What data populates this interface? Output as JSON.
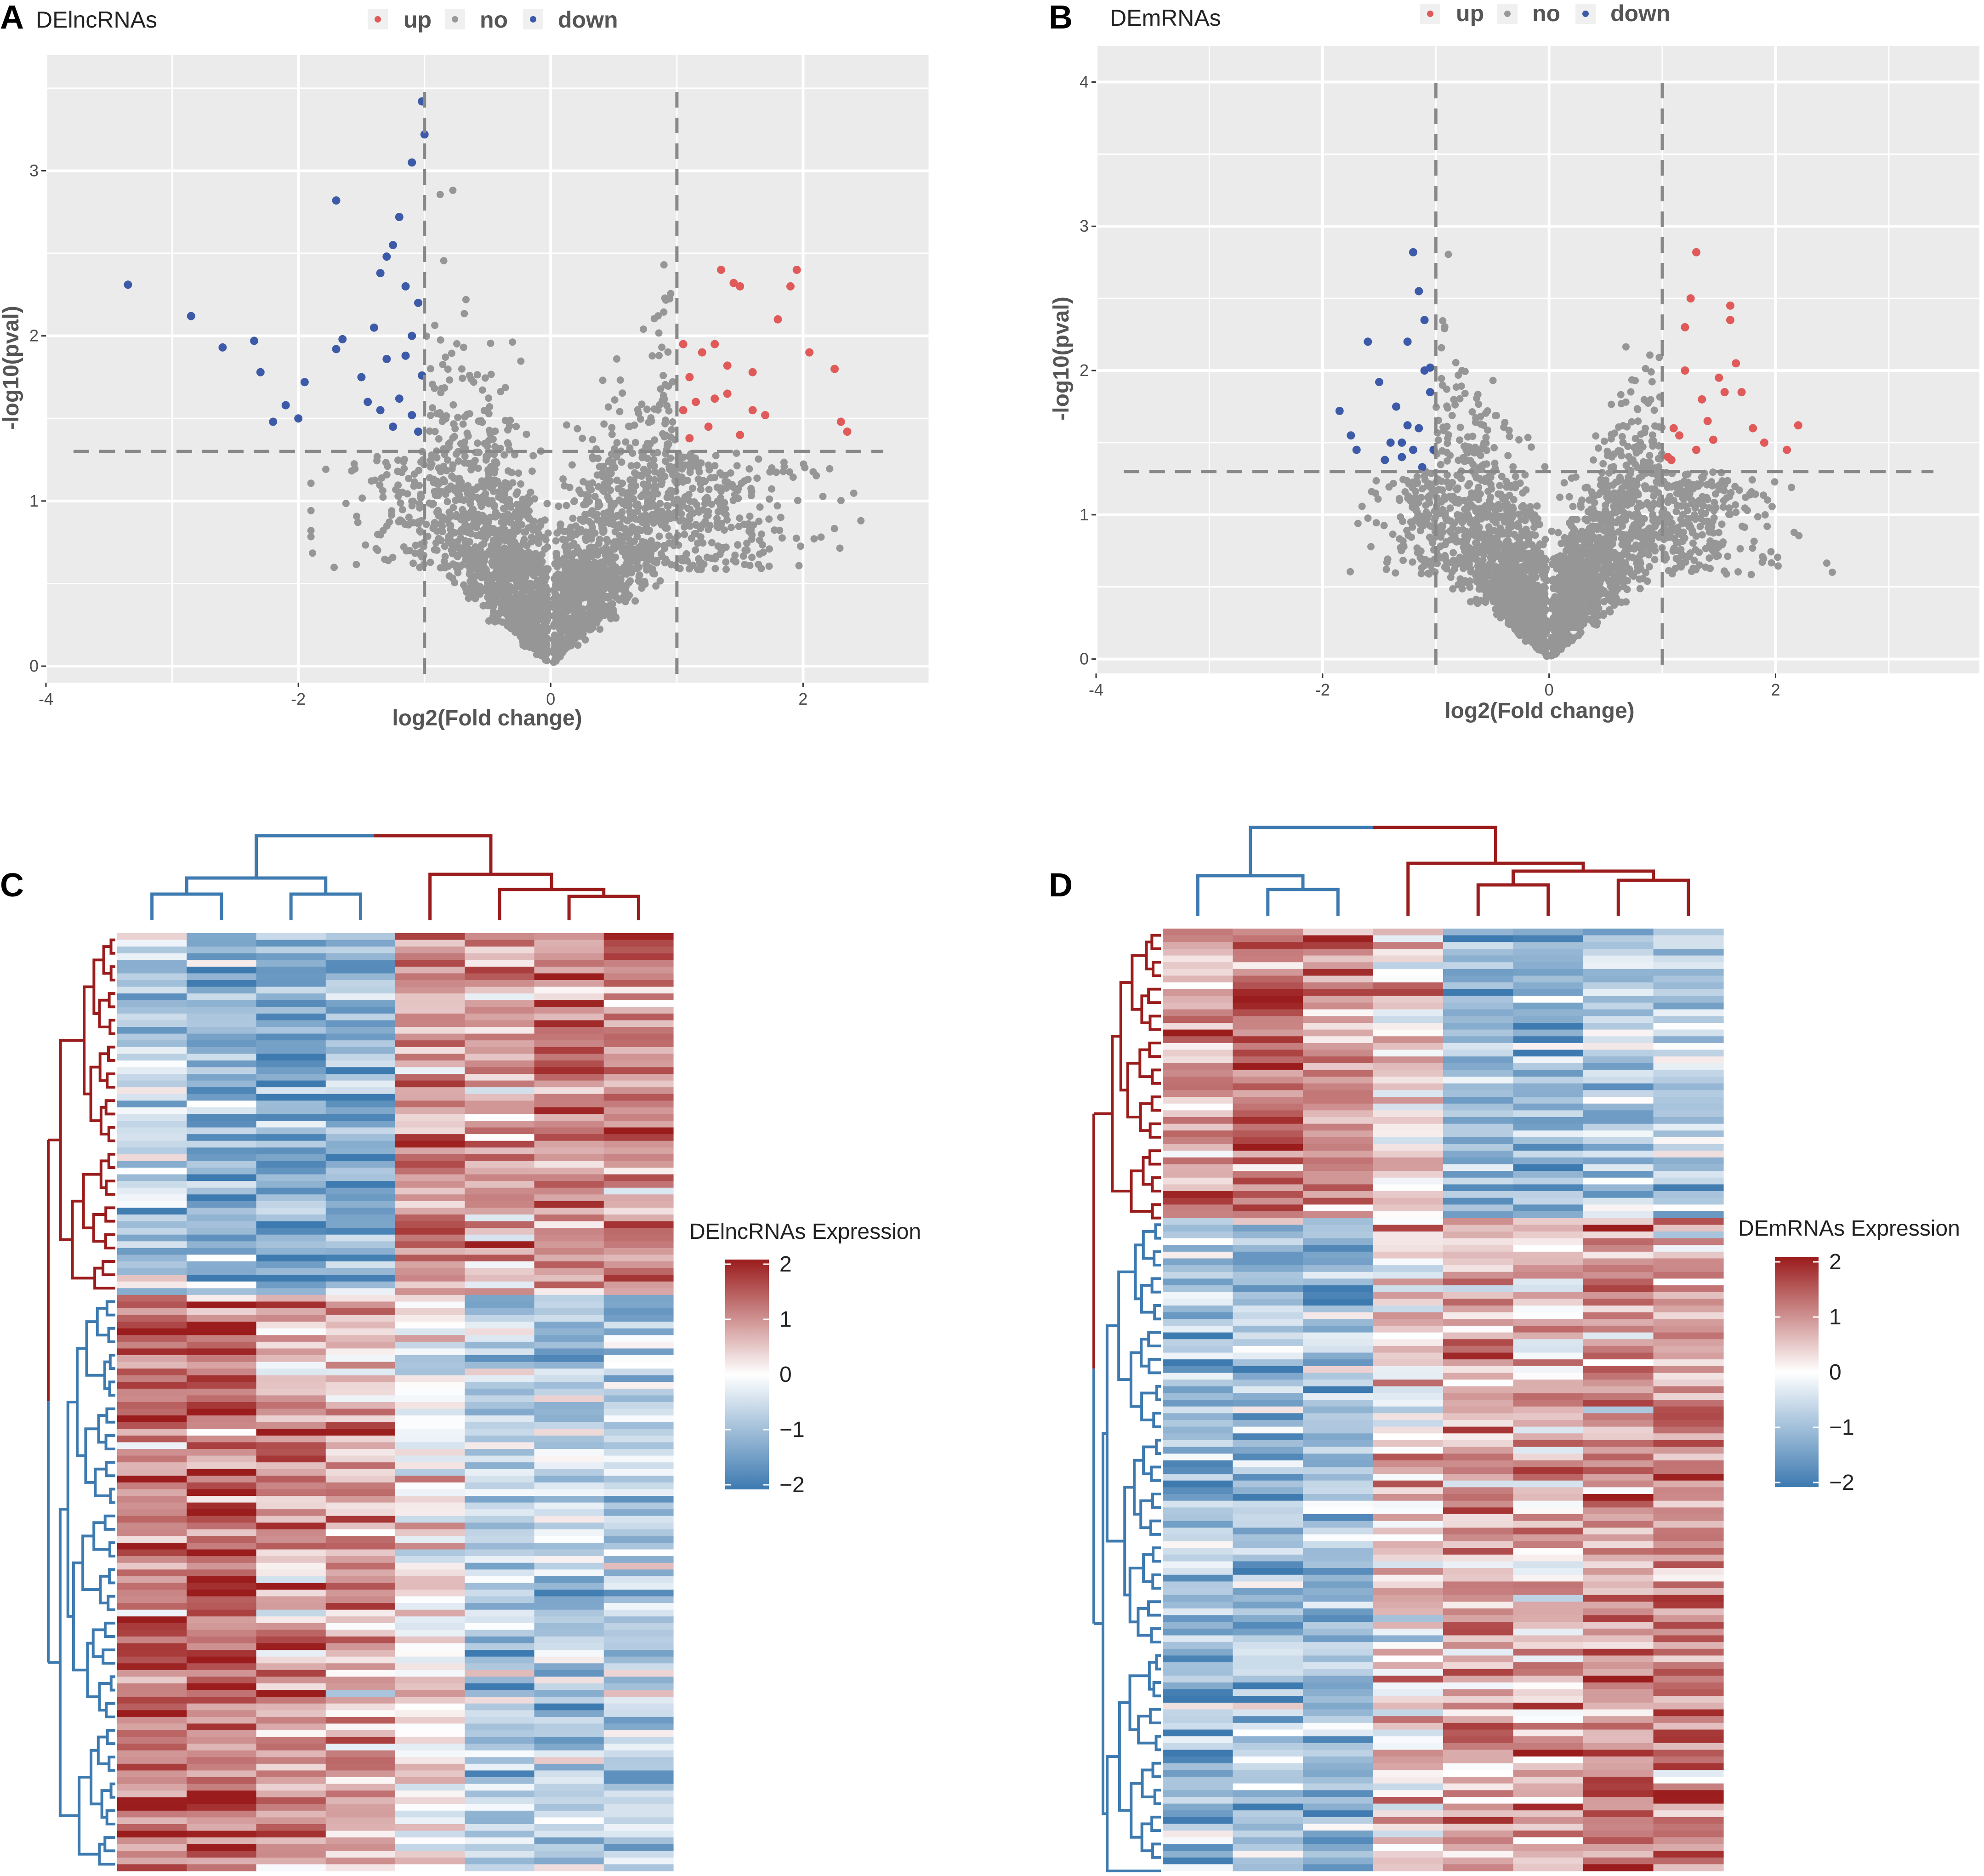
{
  "panel_labels": {
    "a": "A",
    "b": "B",
    "c": "C",
    "d": "D"
  },
  "chart_data": [
    {
      "type": "scatter",
      "id": "A",
      "title": "DElncRNAs",
      "xlabel": "log2(Fold change)",
      "ylabel": "-log10(pval)",
      "xlim": [
        -4,
        3
      ],
      "ylim": [
        -0.1,
        3.7
      ],
      "xticks": [
        -4,
        -2,
        0,
        2
      ],
      "xtick_labels": [
        "-4",
        "-2",
        "0",
        "2"
      ],
      "yticks": [
        0,
        1,
        2,
        3
      ],
      "ytick_labels": [
        "0",
        "1",
        "2",
        "3"
      ],
      "legend": [
        {
          "label": "up",
          "color": "#e05a5a"
        },
        {
          "label": "no",
          "color": "#999999"
        },
        {
          "label": "down",
          "color": "#3c5aa8"
        }
      ],
      "thresholds": {
        "fc": 1,
        "p": 1.3
      },
      "background_points_approx": 2600,
      "points": {
        "down": [
          [
            -3.35,
            2.31
          ],
          [
            -2.85,
            2.12
          ],
          [
            -2.6,
            1.93
          ],
          [
            -2.35,
            1.97
          ],
          [
            -2.3,
            1.78
          ],
          [
            -2.1,
            1.58
          ],
          [
            -2.2,
            1.48
          ],
          [
            -2.0,
            1.5
          ],
          [
            -1.95,
            1.72
          ],
          [
            -1.7,
            1.92
          ],
          [
            -1.65,
            1.98
          ],
          [
            -1.5,
            1.75
          ],
          [
            -1.45,
            1.6
          ],
          [
            -1.4,
            2.05
          ],
          [
            -1.35,
            2.38
          ],
          [
            -1.3,
            2.48
          ],
          [
            -1.25,
            2.55
          ],
          [
            -1.2,
            2.72
          ],
          [
            -1.15,
            2.3
          ],
          [
            -1.1,
            2.0
          ],
          [
            -1.05,
            2.2
          ],
          [
            -1.3,
            1.86
          ],
          [
            -1.2,
            1.62
          ],
          [
            -1.1,
            1.52
          ],
          [
            -1.05,
            1.42
          ],
          [
            -1.0,
            3.22
          ],
          [
            -1.02,
            3.42
          ],
          [
            -1.1,
            3.05
          ],
          [
            -1.7,
            2.82
          ],
          [
            -1.25,
            1.45
          ],
          [
            -1.35,
            1.55
          ],
          [
            -1.15,
            1.88
          ],
          [
            -1.02,
            1.76
          ]
        ],
        "up": [
          [
            1.05,
            1.55
          ],
          [
            1.1,
            1.75
          ],
          [
            1.2,
            1.9
          ],
          [
            1.3,
            1.62
          ],
          [
            1.35,
            2.4
          ],
          [
            1.4,
            1.82
          ],
          [
            1.45,
            2.32
          ],
          [
            1.5,
            2.3
          ],
          [
            1.6,
            1.55
          ],
          [
            1.7,
            1.52
          ],
          [
            1.8,
            2.1
          ],
          [
            1.9,
            2.3
          ],
          [
            1.95,
            2.4
          ],
          [
            2.05,
            1.9
          ],
          [
            2.25,
            1.8
          ],
          [
            2.3,
            1.48
          ],
          [
            2.35,
            1.42
          ],
          [
            1.25,
            1.45
          ],
          [
            1.5,
            1.4
          ],
          [
            1.1,
            1.38
          ],
          [
            1.4,
            1.65
          ],
          [
            1.6,
            1.78
          ],
          [
            1.05,
            1.95
          ],
          [
            1.3,
            1.95
          ],
          [
            1.15,
            1.6
          ]
        ]
      }
    },
    {
      "type": "scatter",
      "id": "B",
      "title": "DEmRNAs",
      "xlabel": "log2(Fold change)",
      "ylabel": "-log10(pval)",
      "xlim": [
        -4,
        3.8
      ],
      "ylim": [
        -0.1,
        4.25
      ],
      "xticks": [
        -4,
        -2,
        0,
        2
      ],
      "xtick_labels": [
        "-4",
        "-2",
        "0",
        "2"
      ],
      "yticks": [
        0,
        1,
        2,
        3,
        4
      ],
      "ytick_labels": [
        "0",
        "1",
        "2",
        "3",
        "4"
      ],
      "legend": [
        {
          "label": "up",
          "color": "#e05a5a"
        },
        {
          "label": "no",
          "color": "#999999"
        },
        {
          "label": "down",
          "color": "#3c5aa8"
        }
      ],
      "thresholds": {
        "fc": 1,
        "p": 1.3
      },
      "background_points_approx": 2600,
      "points": {
        "down": [
          [
            -1.85,
            1.72
          ],
          [
            -1.75,
            1.55
          ],
          [
            -1.7,
            1.45
          ],
          [
            -1.6,
            2.2
          ],
          [
            -1.5,
            1.92
          ],
          [
            -1.45,
            1.38
          ],
          [
            -1.35,
            1.75
          ],
          [
            -1.3,
            1.5
          ],
          [
            -1.25,
            2.2
          ],
          [
            -1.2,
            1.45
          ],
          [
            -1.15,
            1.6
          ],
          [
            -1.1,
            2.0
          ],
          [
            -1.05,
            1.85
          ],
          [
            -1.2,
            2.82
          ],
          [
            -1.15,
            2.55
          ],
          [
            -1.1,
            2.35
          ],
          [
            -1.05,
            2.02
          ],
          [
            -1.3,
            1.4
          ],
          [
            -1.25,
            1.62
          ],
          [
            -1.4,
            1.5
          ],
          [
            -1.02,
            1.45
          ],
          [
            -1.12,
            1.33
          ]
        ],
        "up": [
          [
            1.05,
            1.4
          ],
          [
            1.1,
            1.6
          ],
          [
            1.15,
            1.55
          ],
          [
            1.2,
            2.0
          ],
          [
            1.2,
            2.3
          ],
          [
            1.25,
            2.5
          ],
          [
            1.3,
            2.82
          ],
          [
            1.35,
            1.8
          ],
          [
            1.4,
            1.65
          ],
          [
            1.45,
            1.52
          ],
          [
            1.5,
            1.95
          ],
          [
            1.55,
            1.85
          ],
          [
            1.6,
            2.45
          ],
          [
            1.6,
            2.35
          ],
          [
            1.65,
            2.05
          ],
          [
            1.7,
            1.85
          ],
          [
            1.8,
            1.6
          ],
          [
            1.9,
            1.5
          ],
          [
            2.1,
            1.45
          ],
          [
            2.2,
            1.62
          ],
          [
            1.08,
            1.38
          ],
          [
            1.3,
            1.45
          ]
        ]
      }
    }
  ],
  "heatmaps": [
    {
      "id": "C",
      "type": "heatmap",
      "legend_title": "DElncRNAs Expression",
      "colorbar_ticks": [
        "2",
        "1",
        "0",
        "−1",
        "−2"
      ],
      "colorbar_range": [
        -2,
        2
      ],
      "n_columns": 8,
      "n_rows": 140,
      "row_groups": [
        {
          "color": "#9b1c1c",
          "rows": 54,
          "pattern": [
            -0.6,
            -0.9,
            -1.4,
            -1.2,
            1.0,
            0.7,
            1.2,
            1.1
          ]
        },
        {
          "color": "#3d7ab0",
          "rows": 86,
          "pattern": [
            1.2,
            1.3,
            0.8,
            0.7,
            0.1,
            -0.6,
            -0.7,
            -0.7
          ]
        }
      ],
      "dendrogram_colors": {
        "left": "#3d7ab0",
        "right": "#9b1c1c"
      }
    },
    {
      "id": "D",
      "type": "heatmap",
      "legend_title": "DEmRNAs Expression",
      "colorbar_ticks": [
        "2",
        "1",
        "0",
        "−1",
        "−2"
      ],
      "colorbar_range": [
        -2,
        2
      ],
      "n_columns": 8,
      "n_rows": 140,
      "row_groups": [
        {
          "color": "#9b1c1c",
          "rows": 43,
          "pattern": [
            0.9,
            1.3,
            0.9,
            0.3,
            -1.0,
            -1.1,
            -0.8,
            -0.6
          ]
        },
        {
          "color": "#3d7ab0",
          "rows": 97,
          "pattern": [
            -0.9,
            -0.9,
            -1.0,
            0.4,
            0.7,
            0.6,
            0.9,
            1.0
          ]
        }
      ],
      "dendrogram_colors": {
        "left": "#3d7ab0",
        "right": "#9b1c1c"
      }
    }
  ]
}
